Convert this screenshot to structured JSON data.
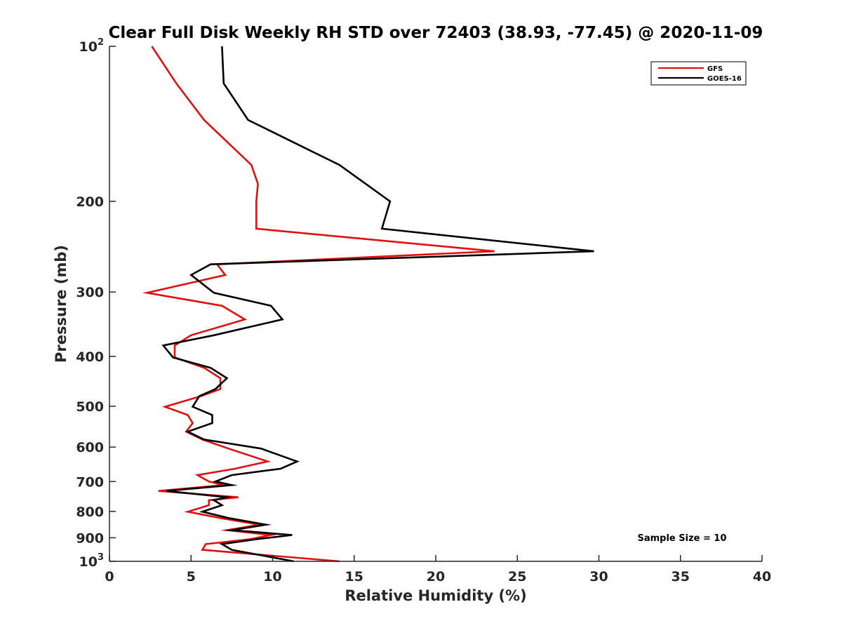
{
  "chart_data": {
    "type": "line",
    "title": "Clear Full Disk Weekly RH STD over 72403 (38.93, -77.45) @ 2020-11-09",
    "xlabel": "Relative Humidity (%)",
    "ylabel": "Pressure (mb)",
    "xlim": [
      0,
      40
    ],
    "ylim": [
      100,
      1000
    ],
    "yscale": "log",
    "y_reversed": true,
    "grid": false,
    "legend_position": "top-right",
    "x_ticks": [
      0,
      5,
      10,
      15,
      20,
      25,
      30,
      35,
      40
    ],
    "x_tick_labels": [
      "0",
      "5",
      "10",
      "15",
      "20",
      "25",
      "30",
      "35",
      "40"
    ],
    "y_ticks": [
      100,
      200,
      300,
      400,
      500,
      600,
      700,
      800,
      900,
      1000
    ],
    "y_tick_labels": [
      {
        "base": "10",
        "sup": "2"
      },
      {
        "base": "200",
        "sup": ""
      },
      {
        "base": "300",
        "sup": ""
      },
      {
        "base": "400",
        "sup": ""
      },
      {
        "base": "500",
        "sup": ""
      },
      {
        "base": "600",
        "sup": ""
      },
      {
        "base": "700",
        "sup": ""
      },
      {
        "base": "800",
        "sup": ""
      },
      {
        "base": "900",
        "sup": ""
      },
      {
        "base": "10",
        "sup": "3"
      }
    ],
    "annotation": "Sample Size = 10",
    "series": [
      {
        "name": "GFS",
        "color": "#e01010",
        "points": [
          [
            2.6,
            100
          ],
          [
            4.1,
            118
          ],
          [
            5.8,
            139
          ],
          [
            8.7,
            170
          ],
          [
            9.1,
            185
          ],
          [
            9.0,
            200
          ],
          [
            9.0,
            226
          ],
          [
            23.6,
            250
          ],
          [
            6.6,
            265
          ],
          [
            7.1,
            278
          ],
          [
            2.3,
            301
          ],
          [
            6.9,
            319
          ],
          [
            8.3,
            339
          ],
          [
            5.0,
            364
          ],
          [
            4.0,
            381
          ],
          [
            4.0,
            402
          ],
          [
            5.8,
            421
          ],
          [
            6.8,
            441
          ],
          [
            6.8,
            463
          ],
          [
            5.6,
            478
          ],
          [
            3.4,
            501
          ],
          [
            4.8,
            520
          ],
          [
            5.1,
            539
          ],
          [
            4.7,
            560
          ],
          [
            5.7,
            580
          ],
          [
            7.3,
            604
          ],
          [
            9.7,
            640
          ],
          [
            7.7,
            661
          ],
          [
            5.4,
            680
          ],
          [
            6.1,
            700
          ],
          [
            7.0,
            711
          ],
          [
            3.0,
            730
          ],
          [
            7.9,
            751
          ],
          [
            6.1,
            761
          ],
          [
            6.1,
            778
          ],
          [
            4.8,
            801
          ],
          [
            6.8,
            824
          ],
          [
            9.2,
            849
          ],
          [
            7.2,
            870
          ],
          [
            9.9,
            889
          ],
          [
            8.6,
            906
          ],
          [
            5.9,
            926
          ],
          [
            5.7,
            950
          ],
          [
            14.1,
            1000
          ]
        ]
      },
      {
        "name": "GOES-16",
        "color": "#000000",
        "points": [
          [
            6.9,
            100
          ],
          [
            7.0,
            118
          ],
          [
            8.5,
            139
          ],
          [
            14.1,
            170
          ],
          [
            17.2,
            200
          ],
          [
            16.7,
            226
          ],
          [
            29.7,
            250
          ],
          [
            6.2,
            265
          ],
          [
            5.0,
            278
          ],
          [
            6.4,
            301
          ],
          [
            9.9,
            319
          ],
          [
            10.6,
            339
          ],
          [
            6.4,
            364
          ],
          [
            3.3,
            381
          ],
          [
            3.9,
            402
          ],
          [
            6.2,
            421
          ],
          [
            7.2,
            441
          ],
          [
            6.5,
            463
          ],
          [
            5.5,
            478
          ],
          [
            5.1,
            501
          ],
          [
            6.3,
            520
          ],
          [
            6.3,
            539
          ],
          [
            4.8,
            560
          ],
          [
            5.8,
            580
          ],
          [
            9.3,
            604
          ],
          [
            11.5,
            640
          ],
          [
            10.5,
            661
          ],
          [
            7.5,
            680
          ],
          [
            6.5,
            700
          ],
          [
            7.5,
            711
          ],
          [
            3.5,
            730
          ],
          [
            7.2,
            751
          ],
          [
            6.4,
            761
          ],
          [
            6.9,
            778
          ],
          [
            5.7,
            801
          ],
          [
            7.3,
            824
          ],
          [
            9.6,
            849
          ],
          [
            7.5,
            870
          ],
          [
            11.2,
            889
          ],
          [
            9.0,
            906
          ],
          [
            6.9,
            926
          ],
          [
            7.5,
            950
          ],
          [
            11.3,
            1000
          ]
        ]
      }
    ]
  }
}
